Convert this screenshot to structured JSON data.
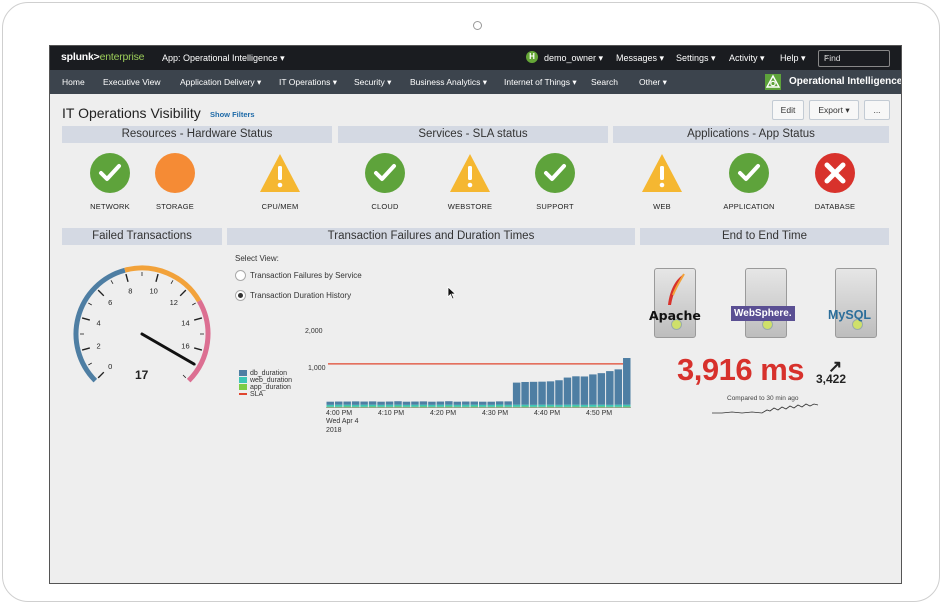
{
  "topbar": {
    "logo_main": "splunk>",
    "logo_sub": "enterprise",
    "app_label": "App: Operational Intelligence ▾",
    "avatar_letter": "H",
    "user": "demo_owner ▾",
    "messages": "Messages ▾",
    "settings": "Settings ▾",
    "activity": "Activity ▾",
    "help": "Help ▾",
    "find_placeholder": "Find"
  },
  "nav": {
    "items": [
      "Home",
      "Executive View",
      "Application Delivery ▾",
      "IT Operations ▾",
      "Security ▾",
      "Business Analytics ▾",
      "Internet of Things ▾",
      "Search",
      "Other ▾"
    ],
    "brand": "Operational Intelligence"
  },
  "page": {
    "title": "IT Operations Visibility",
    "show_filters": "Show Filters",
    "edit": "Edit",
    "export": "Export ▾",
    "more": "..."
  },
  "panels": {
    "resources": "Resources - Hardware Status",
    "services": "Services - SLA status",
    "applications": "Applications - App Status",
    "failed": "Failed Transactions",
    "failures_duration": "Transaction Failures and Duration Times",
    "end_to_end": "End to End Time"
  },
  "status_items": [
    {
      "label": "NETWORK",
      "status": "ok"
    },
    {
      "label": "STORAGE",
      "status": "orange"
    },
    {
      "label": "CPU/MEM",
      "status": "warning"
    },
    {
      "label": "CLOUD",
      "status": "ok"
    },
    {
      "label": "WEBSTORE",
      "status": "warning"
    },
    {
      "label": "SUPPORT",
      "status": "ok"
    },
    {
      "label": "WEB",
      "status": "warning"
    },
    {
      "label": "APPLICATION",
      "status": "ok"
    },
    {
      "label": "DATABASE",
      "status": "error"
    }
  ],
  "colors": {
    "ok": "#5ea33b",
    "orange": "#f58b35",
    "warning": "#f5b731",
    "error": "#d8322c",
    "db_duration": "#4e7ea3",
    "web_duration": "#3cc6b6",
    "app_duration": "#7ccc45",
    "sla": "#e0462f"
  },
  "gauge": {
    "value": 17,
    "min": 0,
    "max": 18,
    "ticks": [
      "0",
      "2",
      "4",
      "6",
      "8",
      "10",
      "12",
      "14",
      "16"
    ],
    "ranges": [
      {
        "from": 0,
        "to": 8,
        "color": "#4e7ea3"
      },
      {
        "from": 8,
        "to": 13,
        "color": "#f2a23a"
      },
      {
        "from": 13,
        "to": 18,
        "color": "#dc6f92"
      }
    ]
  },
  "select_view": {
    "label": "Select View:",
    "options": [
      "Transaction Failures by Service",
      "Transaction Duration History"
    ],
    "selected": 1
  },
  "chart_data": {
    "type": "bar",
    "stacked": true,
    "y_ticks": [
      "2,000",
      "1,000"
    ],
    "ylim": [
      0,
      2600
    ],
    "x_ticks": [
      "4:00 PM",
      "4:10 PM",
      "4:20 PM",
      "4:30 PM",
      "4:40 PM",
      "4:50 PM"
    ],
    "x_tick_date": [
      "Wed Apr 4",
      "2018"
    ],
    "series": [
      {
        "name": "db_duration",
        "values": [
          100,
          100,
          100,
          110,
          100,
          105,
          100,
          100,
          110,
          100,
          100,
          105,
          100,
          100,
          110,
          100,
          100,
          100,
          100,
          100,
          100,
          110,
          700,
          720,
          730,
          730,
          740,
          780,
          860,
          900,
          900,
          960,
          1000,
          1070,
          1120,
          1480
        ]
      },
      {
        "name": "web_duration",
        "values": [
          60,
          65,
          60,
          60,
          65,
          60,
          60,
          65,
          60,
          60,
          65,
          60,
          60,
          65,
          60,
          60,
          65,
          60,
          60,
          60,
          65,
          60,
          65,
          60,
          60,
          65,
          60,
          60,
          65,
          60,
          60,
          65,
          60,
          60,
          65,
          60
        ]
      },
      {
        "name": "app_duration",
        "values": [
          40,
          40,
          45,
          40,
          40,
          45,
          40,
          40,
          45,
          40,
          40,
          45,
          40,
          40,
          45,
          40,
          40,
          45,
          40,
          40,
          45,
          40,
          40,
          45,
          40,
          40,
          45,
          40,
          40,
          45,
          40,
          40,
          45,
          40,
          40,
          45
        ]
      }
    ],
    "sla_line": {
      "name": "SLA",
      "value": 1400
    }
  },
  "end_to_end": {
    "servers": [
      "Apache",
      "WebSphere.",
      "MySQL"
    ],
    "value": "3,916 ms",
    "arrow": "↗",
    "compare_value": "3,422",
    "compare_text": "Compared to 30 min ago"
  }
}
